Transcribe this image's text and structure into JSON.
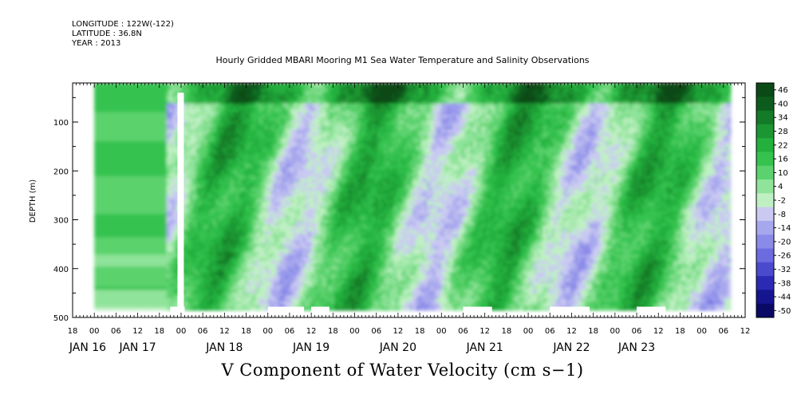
{
  "header": {
    "longitude": "LONGITUDE : 122W(-122)",
    "latitude": "LATITUDE : 36.8N",
    "year": "YEAR : 2013"
  },
  "chart_data": {
    "type": "heatmap",
    "title": "Hourly Gridded MBARI Mooring M1 Sea Water Temperature and Salinity Observations",
    "bottom_title": "V Component of Water Velocity (cm s−1)",
    "ylabel": "DEPTH (m)",
    "ylim": [
      500,
      20
    ],
    "yticks": [
      "100",
      "200",
      "300",
      "400",
      "500"
    ],
    "y_tick_values": [
      100,
      200,
      300,
      400,
      500
    ],
    "x_range_hours": [
      -6,
      180
    ],
    "x_hour_labels": [
      "18",
      "00",
      "06",
      "12",
      "18",
      "00",
      "06",
      "12",
      "18",
      "00",
      "06",
      "12",
      "18",
      "00",
      "06",
      "12",
      "18",
      "00",
      "06",
      "12",
      "18",
      "00",
      "06",
      "12",
      "18",
      "00",
      "06",
      "12",
      "18",
      "00",
      "06",
      "12"
    ],
    "x_date_labels": [
      "JAN 16",
      "JAN 17",
      "JAN 18",
      "JAN 19",
      "JAN 20",
      "JAN 21",
      "JAN 22",
      "JAN 23"
    ],
    "x_date_hours": [
      -12,
      12,
      36,
      60,
      84,
      108,
      132,
      150
    ],
    "colorbar": {
      "labels": [
        "46",
        "40",
        "34",
        "28",
        "22",
        "16",
        "10",
        "4",
        "-2",
        "-8",
        "-14",
        "-20",
        "-26",
        "-32",
        "-38",
        "-44",
        "-50"
      ],
      "colors": [
        "#0a4a17",
        "#0d5c1d",
        "#137a27",
        "#1b9632",
        "#23b03d",
        "#35c24f",
        "#5bd26d",
        "#8fe39a",
        "#bff0c3",
        "#c9c9f2",
        "#a7a7ee",
        "#8a8ae8",
        "#6c6ce0",
        "#4a4acd",
        "#2a2ab4",
        "#15158f",
        "#0a0a66"
      ]
    },
    "data_coverage_hours": [
      0,
      176
    ],
    "description_bands": "Positive (northward, green) velocities dominate near surface; alternating negative (blue) columns through depth"
  }
}
